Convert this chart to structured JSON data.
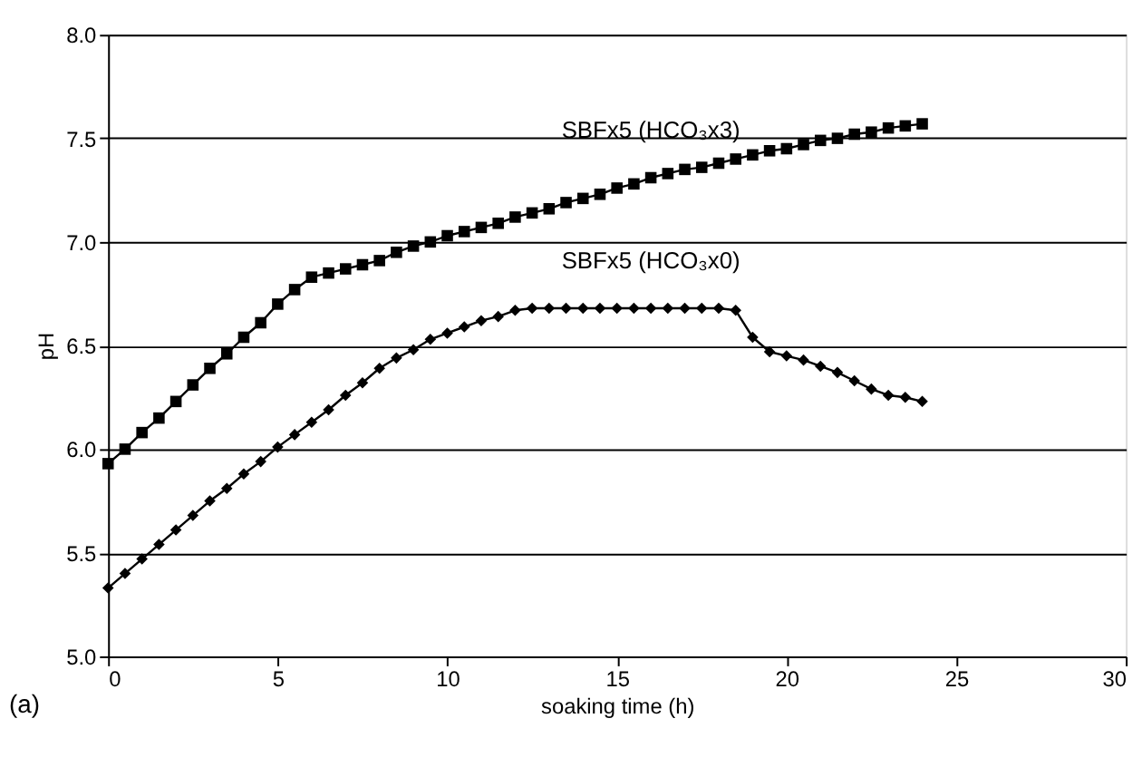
{
  "chart_data": {
    "type": "line",
    "xlabel": "soaking time (h)",
    "ylabel": "pH",
    "x": [
      0,
      0.5,
      1,
      1.5,
      2,
      2.5,
      3,
      3.5,
      4,
      4.5,
      5,
      5.5,
      6,
      6.5,
      7,
      7.5,
      8,
      8.5,
      9,
      9.5,
      10,
      10.5,
      11,
      11.5,
      12,
      12.5,
      13,
      13.5,
      14,
      14.5,
      15,
      15.5,
      16,
      16.5,
      17,
      17.5,
      18,
      18.5,
      19,
      19.5,
      20,
      20.5,
      21,
      21.5,
      22,
      22.5,
      23,
      23.5,
      24
    ],
    "series": [
      {
        "name": "SBFx5 (HCO₃x3)",
        "color": "#000000",
        "marker": "square",
        "values": [
          5.93,
          6.0,
          6.08,
          6.15,
          6.23,
          6.31,
          6.39,
          6.46,
          6.54,
          6.61,
          6.7,
          6.77,
          6.83,
          6.85,
          6.87,
          6.89,
          6.91,
          6.95,
          6.98,
          7.0,
          7.03,
          7.05,
          7.07,
          7.09,
          7.12,
          7.14,
          7.16,
          7.19,
          7.21,
          7.23,
          7.26,
          7.28,
          7.31,
          7.33,
          7.35,
          7.36,
          7.38,
          7.4,
          7.42,
          7.44,
          7.45,
          7.47,
          7.49,
          7.5,
          7.52,
          7.53,
          7.55,
          7.56,
          7.57
        ]
      },
      {
        "name": "SBFx5 (HCO₃x0)",
        "color": "#000000",
        "marker": "diamond",
        "values": [
          5.33,
          5.4,
          5.47,
          5.54,
          5.61,
          5.68,
          5.75,
          5.81,
          5.88,
          5.94,
          6.01,
          6.07,
          6.13,
          6.19,
          6.26,
          6.32,
          6.39,
          6.44,
          6.48,
          6.53,
          6.56,
          6.59,
          6.62,
          6.64,
          6.67,
          6.68,
          6.68,
          6.68,
          6.68,
          6.68,
          6.68,
          6.68,
          6.68,
          6.68,
          6.68,
          6.68,
          6.68,
          6.67,
          6.54,
          6.47,
          6.45,
          6.43,
          6.4,
          6.37,
          6.33,
          6.29,
          6.26,
          6.25,
          6.23
        ]
      }
    ],
    "xlim": [
      0,
      30
    ],
    "xticks": [
      0,
      5,
      10,
      15,
      20,
      25,
      30
    ],
    "ylim": [
      5.0,
      8.0
    ],
    "yticks": [
      {
        "value": 5.0,
        "label": "5.0"
      },
      {
        "value": 5.5,
        "label": "5.5"
      },
      {
        "value": 6.0,
        "label": "6.0"
      },
      {
        "value": 6.5,
        "label": "6.5"
      },
      {
        "value": 7.0,
        "label": "7.0"
      },
      {
        "value": 7.5,
        "label": "7.5"
      },
      {
        "value": 8.0,
        "label": "8.0"
      }
    ],
    "grid": "y",
    "line_style": "solid",
    "annotations": [
      "(a)"
    ]
  }
}
